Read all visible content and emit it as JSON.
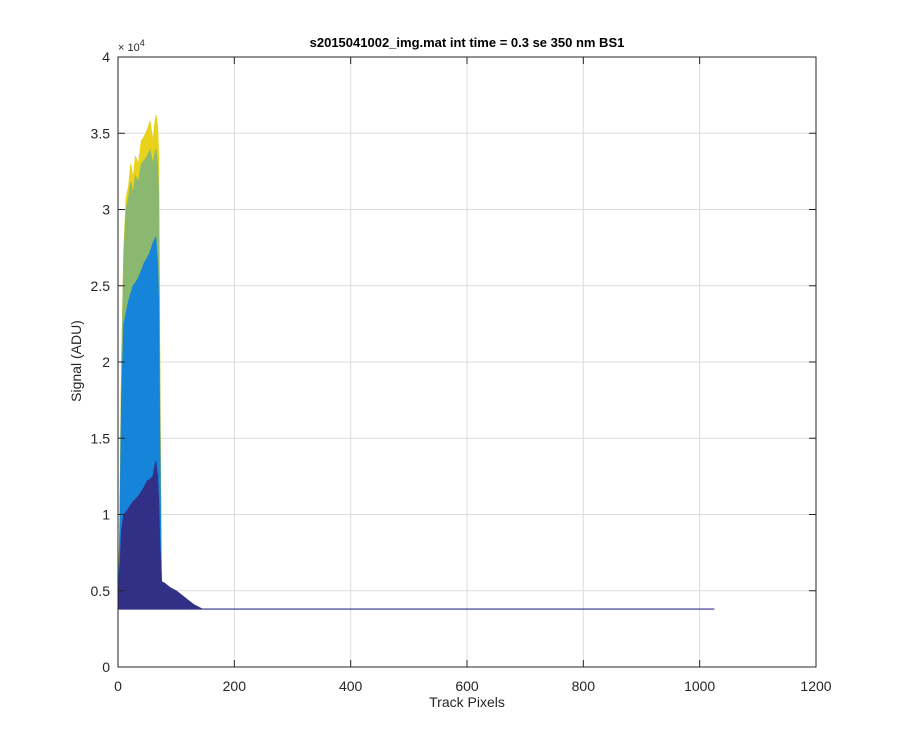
{
  "chart_data": {
    "type": "area",
    "title": "s2015041002_img.mat int time = 0.3 se  350 nm BS1",
    "xlabel": "Track Pixels",
    "ylabel": "Signal (ADU)",
    "xlim": [
      0,
      1200
    ],
    "ylim": [
      0,
      40000
    ],
    "xticks": [
      0,
      200,
      400,
      600,
      800,
      1000,
      1200
    ],
    "xtick_labels": [
      "0",
      "200",
      "400",
      "600",
      "800",
      "1000",
      "1200"
    ],
    "yticks": [
      0,
      5000,
      10000,
      15000,
      20000,
      25000,
      30000,
      35000,
      40000
    ],
    "ytick_labels": [
      "0",
      "0.5",
      "1",
      "1.5",
      "2",
      "2.5",
      "3",
      "3.5",
      "4"
    ],
    "y_exponent_label": "× 10",
    "y_exponent_power": "4",
    "grid": true,
    "baseline": 3800,
    "series": [
      {
        "color": "#e8d21a",
        "x": [
          0,
          3,
          6,
          10,
          14,
          18,
          22,
          26,
          30,
          35,
          40,
          45,
          50,
          55,
          60,
          65,
          68,
          70,
          72,
          75
        ],
        "y": [
          3800,
          9000,
          20000,
          27500,
          30800,
          31500,
          33000,
          32000,
          33500,
          33000,
          34500,
          34800,
          35200,
          35800,
          34500,
          36200,
          35500,
          33500,
          20000,
          3800
        ]
      },
      {
        "color": "#8bb870",
        "x": [
          0,
          3,
          6,
          10,
          14,
          18,
          22,
          26,
          30,
          35,
          40,
          45,
          50,
          55,
          60,
          65,
          68,
          70,
          72,
          75
        ],
        "y": [
          3800,
          8800,
          19500,
          27000,
          30000,
          30800,
          31800,
          31000,
          32200,
          31800,
          33000,
          33200,
          33500,
          33900,
          33000,
          34000,
          33000,
          31000,
          18000,
          3800
        ]
      },
      {
        "color": "#1684d8",
        "x": [
          0,
          3,
          6,
          10,
          14,
          18,
          22,
          26,
          30,
          35,
          40,
          45,
          50,
          55,
          60,
          65,
          68,
          70,
          72,
          75
        ],
        "y": [
          3800,
          8000,
          17500,
          22500,
          23200,
          24000,
          24500,
          25000,
          25200,
          25500,
          26000,
          26500,
          26800,
          27200,
          27800,
          28200,
          26500,
          24000,
          14000,
          3800
        ]
      },
      {
        "color": "#322f87",
        "x": [
          0,
          2,
          4,
          6,
          10,
          15,
          20,
          25,
          30,
          35,
          40,
          45,
          50,
          55,
          60,
          65,
          68,
          70,
          72,
          75,
          80,
          90,
          100,
          110,
          120,
          130,
          140,
          145,
          1025
        ],
        "y": [
          3800,
          6000,
          7000,
          9000,
          10000,
          10200,
          10500,
          10800,
          11000,
          11200,
          11500,
          11800,
          12200,
          12300,
          12500,
          13500,
          12500,
          11000,
          8000,
          5600,
          5500,
          5200,
          5000,
          4700,
          4400,
          4100,
          3900,
          3800,
          3800
        ]
      }
    ]
  }
}
